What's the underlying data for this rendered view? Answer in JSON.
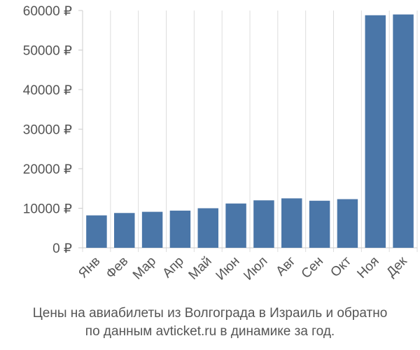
{
  "chart_data": {
    "type": "bar",
    "categories": [
      "Янв",
      "Фев",
      "Мар",
      "Апр",
      "Май",
      "Июн",
      "Июл",
      "Авг",
      "Сен",
      "Окт",
      "Ноя",
      "Дек"
    ],
    "values": [
      8200,
      8800,
      9100,
      9400,
      10000,
      11200,
      12000,
      12500,
      11900,
      12300,
      58800,
      59000
    ],
    "y_ticks": [
      "0 ₽",
      "10000 ₽",
      "20000 ₽",
      "30000 ₽",
      "40000 ₽",
      "50000 ₽",
      "60000 ₽"
    ],
    "y_tick_values": [
      0,
      10000,
      20000,
      30000,
      40000,
      50000,
      60000
    ],
    "ylim": [
      0,
      60000
    ],
    "bar_color": "#4a76a8",
    "grid": "vertical",
    "caption_line1": "Цены на авиабилеты из Волгограда в Израиль и обратно",
    "caption_line2": "по данным avticket.ru в динамике за год."
  }
}
